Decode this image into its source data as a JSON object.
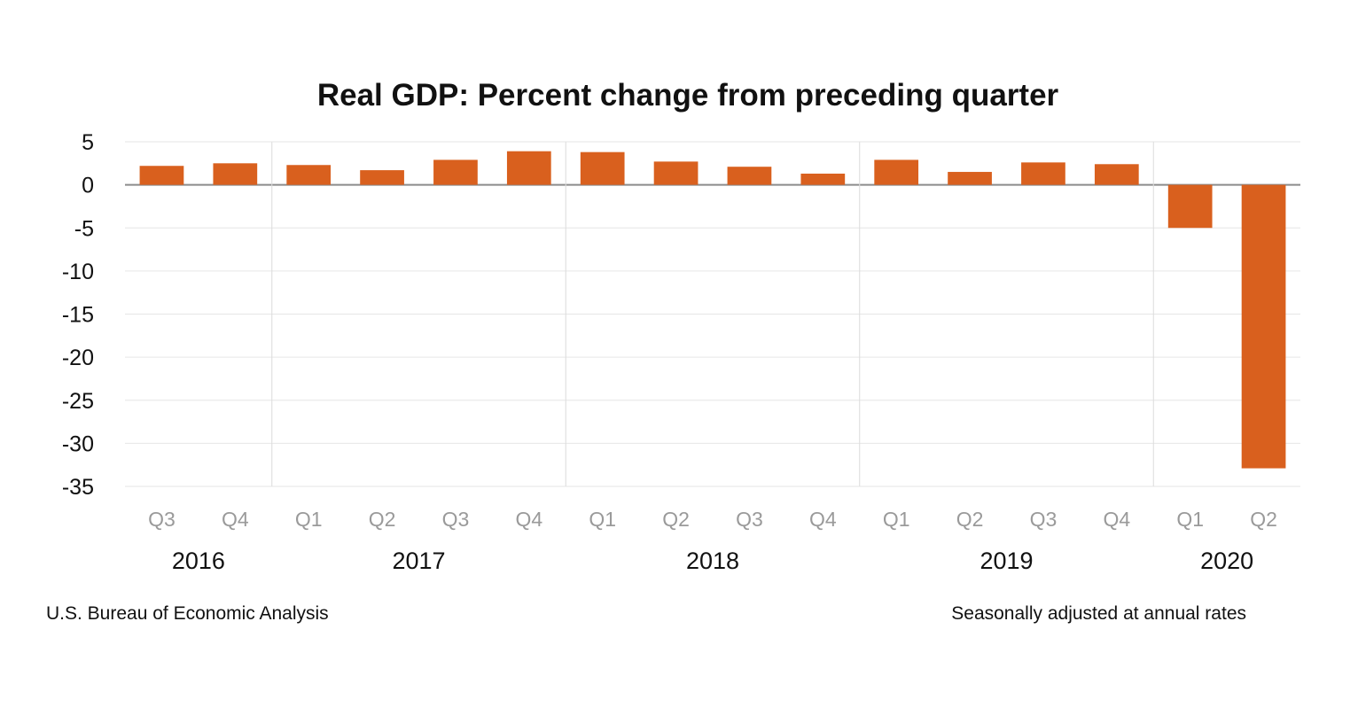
{
  "chart_data": {
    "type": "bar",
    "title": "Real GDP:  Percent change from preceding quarter",
    "categories": [
      "Q3",
      "Q4",
      "Q1",
      "Q2",
      "Q3",
      "Q4",
      "Q1",
      "Q2",
      "Q3",
      "Q4",
      "Q1",
      "Q2",
      "Q3",
      "Q4",
      "Q1",
      "Q2"
    ],
    "years": [
      {
        "label": "2016",
        "quarters": 2
      },
      {
        "label": "2017",
        "quarters": 4
      },
      {
        "label": "2018",
        "quarters": 4
      },
      {
        "label": "2019",
        "quarters": 4
      },
      {
        "label": "2020",
        "quarters": 2
      }
    ],
    "values": [
      2.2,
      2.5,
      2.3,
      1.7,
      2.9,
      3.9,
      3.8,
      2.7,
      2.1,
      1.3,
      2.9,
      1.5,
      2.6,
      2.4,
      -5.0,
      -32.9
    ],
    "ylim": [
      -35,
      5
    ],
    "yticks": [
      5,
      0,
      -5,
      -10,
      -15,
      -20,
      -25,
      -30,
      -35
    ],
    "grid": true,
    "bar_color": "#d9601e",
    "source": "U.S. Bureau of Economic Analysis",
    "note": "Seasonally adjusted at annual rates"
  }
}
